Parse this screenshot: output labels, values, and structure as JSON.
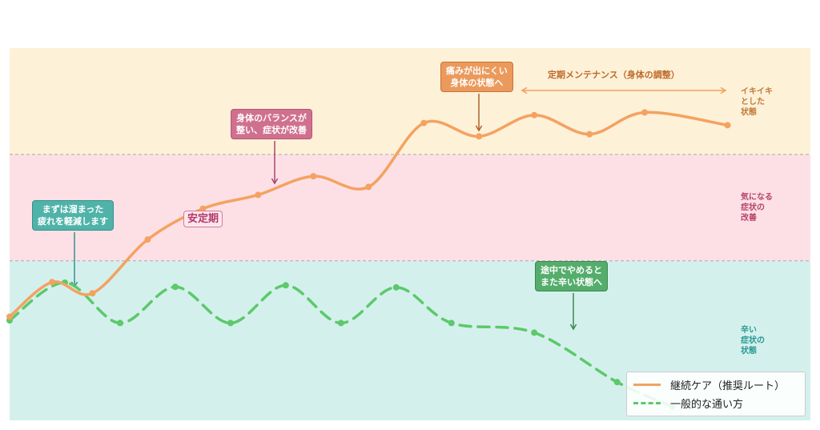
{
  "chart_data": {
    "type": "line",
    "title": "",
    "xlabel": "",
    "ylabel": "",
    "xlim": [
      0,
      14.5
    ],
    "ylim": [
      0,
      7
    ],
    "grid": false,
    "legend_position": "bottom-right",
    "zones": [
      {
        "label": "辛い\n症状の\n状態",
        "range": [
          0,
          3
        ],
        "color": "#d4f0ed",
        "text_color": "#2a9a94"
      },
      {
        "label": "気になる\n症状の\n改善",
        "range": [
          3,
          5
        ],
        "color": "#fde0e6",
        "text_color": "#b8466e"
      },
      {
        "label": "イキイキ\nとした\n状態",
        "range": [
          5,
          7
        ],
        "color": "#fdf1d8",
        "text_color": "#c07a3a"
      }
    ],
    "series": [
      {
        "name": "継続ケア（推奨ルート）",
        "color": "#f4a261",
        "style": "solid",
        "x": [
          0,
          0.77,
          1.5,
          2.5,
          3.5,
          4.5,
          5.5,
          6.5,
          7.5,
          8.5,
          9.5,
          10.5,
          11.5,
          13.0
        ],
        "y": [
          1.95,
          2.6,
          2.39,
          3.4,
          3.98,
          4.24,
          4.59,
          4.39,
          5.59,
          5.34,
          5.74,
          5.38,
          5.79,
          5.55
        ]
      },
      {
        "name": "一般的な通い方",
        "color": "#5cc96b",
        "style": "dashed",
        "x": [
          0,
          1,
          2,
          3,
          4,
          5,
          6,
          7,
          8,
          9.5,
          11,
          12
        ],
        "y": [
          1.88,
          2.59,
          1.83,
          2.51,
          1.83,
          2.54,
          1.83,
          2.5,
          1.83,
          1.65,
          0.72,
          0.26
        ]
      }
    ],
    "annotations": {
      "start": {
        "text": "まずは溜まった\n疲れを軽減します",
        "color": "#4fb3a9"
      },
      "stable": {
        "text": "安定期"
      },
      "balance": {
        "text": "身体のバランスが\n整い、症状が改善",
        "color": "#d0708f"
      },
      "pain": {
        "text": "痛みが出にくい\n身体の状態へ",
        "color": "#eb9a5c"
      },
      "maintenance": {
        "text": "定期メンテナンス（身体の調整）"
      },
      "quit": {
        "text": "途中でやめると\nまた辛い状態へ",
        "color": "#55ad6c"
      }
    }
  }
}
